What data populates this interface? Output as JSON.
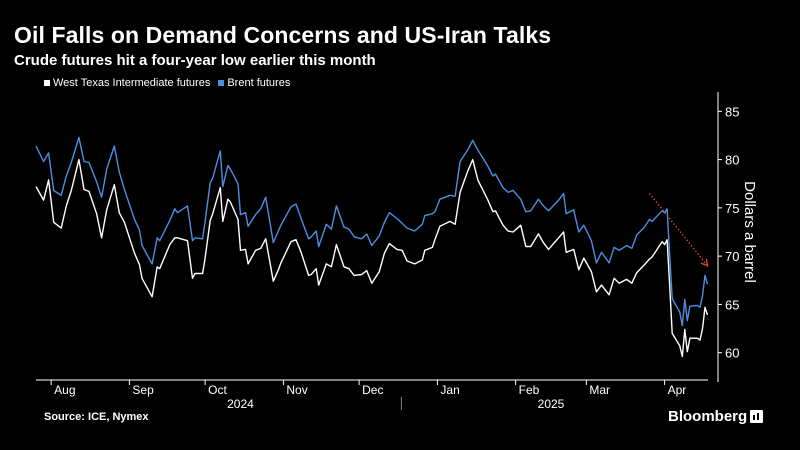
{
  "header": {
    "title": "Oil Falls on Demand Concerns and US-Iran Talks",
    "subtitle": "Crude futures hit a four-year low earlier this month"
  },
  "footer": {
    "source": "Source: ICE, Nymex",
    "brand": "Bloomberg"
  },
  "colors": {
    "background": "#000000",
    "wti": "#ffffff",
    "brent": "#4a90e2",
    "arrow": "#e04a3a"
  },
  "chart_data": {
    "type": "line",
    "title": "Oil Falls on Demand Concerns and US-Iran Talks",
    "subtitle": "Crude futures hit a four-year low earlier this month",
    "ylabel": "Dollars a barrel",
    "ylim": [
      58,
      87
    ],
    "yticks": [
      60,
      65,
      70,
      75,
      80,
      85
    ],
    "y_axis_position": "right",
    "grid": false,
    "legend_position": "top-left",
    "xlim": [
      "2024-07-26",
      "2025-04-17"
    ],
    "month_ticks": [
      {
        "label": "Aug",
        "date": "2024-08-01"
      },
      {
        "label": "Sep",
        "date": "2024-09-01"
      },
      {
        "label": "Oct",
        "date": "2024-10-01"
      },
      {
        "label": "Nov",
        "date": "2024-11-01"
      },
      {
        "label": "Dec",
        "date": "2024-12-01"
      },
      {
        "label": "Jan",
        "date": "2025-01-01"
      },
      {
        "label": "Feb",
        "date": "2025-02-01"
      },
      {
        "label": "Mar",
        "date": "2025-03-01"
      },
      {
        "label": "Apr",
        "date": "2025-04-01"
      }
    ],
    "year_labels": [
      {
        "label": "2024",
        "date": "2024-10-15"
      },
      {
        "label": "2025",
        "date": "2025-02-15"
      }
    ],
    "year_divider_date": "2025-01-01",
    "series": [
      {
        "name": "West Texas Intermediate futures",
        "color": "#ffffff",
        "points": [
          [
            "2024-07-26",
            77.2
          ],
          [
            "2024-07-29",
            75.8
          ],
          [
            "2024-07-31",
            77.9
          ],
          [
            "2024-08-02",
            73.5
          ],
          [
            "2024-08-05",
            72.9
          ],
          [
            "2024-08-07",
            75.2
          ],
          [
            "2024-08-09",
            76.8
          ],
          [
            "2024-08-12",
            80.0
          ],
          [
            "2024-08-14",
            76.9
          ],
          [
            "2024-08-16",
            76.7
          ],
          [
            "2024-08-19",
            74.4
          ],
          [
            "2024-08-21",
            71.9
          ],
          [
            "2024-08-23",
            74.8
          ],
          [
            "2024-08-26",
            77.4
          ],
          [
            "2024-08-28",
            74.5
          ],
          [
            "2024-08-30",
            73.5
          ],
          [
            "2024-09-03",
            70.3
          ],
          [
            "2024-09-05",
            69.1
          ],
          [
            "2024-09-06",
            67.7
          ],
          [
            "2024-09-10",
            65.8
          ],
          [
            "2024-09-12",
            68.9
          ],
          [
            "2024-09-13",
            68.7
          ],
          [
            "2024-09-17",
            71.2
          ],
          [
            "2024-09-19",
            71.9
          ],
          [
            "2024-09-20",
            71.9
          ],
          [
            "2024-09-24",
            71.6
          ],
          [
            "2024-09-26",
            67.7
          ],
          [
            "2024-09-27",
            68.2
          ],
          [
            "2024-09-30",
            68.2
          ],
          [
            "2024-10-01",
            69.8
          ],
          [
            "2024-10-03",
            73.7
          ],
          [
            "2024-10-04",
            74.4
          ],
          [
            "2024-10-07",
            77.1
          ],
          [
            "2024-10-08",
            73.6
          ],
          [
            "2024-10-10",
            75.9
          ],
          [
            "2024-10-11",
            75.6
          ],
          [
            "2024-10-14",
            73.8
          ],
          [
            "2024-10-15",
            70.6
          ],
          [
            "2024-10-17",
            70.7
          ],
          [
            "2024-10-18",
            69.2
          ],
          [
            "2024-10-21",
            70.6
          ],
          [
            "2024-10-23",
            70.8
          ],
          [
            "2024-10-25",
            71.8
          ],
          [
            "2024-10-28",
            67.4
          ],
          [
            "2024-10-30",
            68.6
          ],
          [
            "2024-10-31",
            69.3
          ],
          [
            "2024-11-04",
            71.5
          ],
          [
            "2024-11-06",
            71.7
          ],
          [
            "2024-11-08",
            70.4
          ],
          [
            "2024-11-11",
            68.0
          ],
          [
            "2024-11-12",
            68.1
          ],
          [
            "2024-11-14",
            68.7
          ],
          [
            "2024-11-15",
            67.0
          ],
          [
            "2024-11-18",
            69.2
          ],
          [
            "2024-11-20",
            68.9
          ],
          [
            "2024-11-22",
            71.2
          ],
          [
            "2024-11-25",
            68.9
          ],
          [
            "2024-11-27",
            68.7
          ],
          [
            "2024-11-29",
            68.0
          ],
          [
            "2024-12-02",
            68.1
          ],
          [
            "2024-12-04",
            68.5
          ],
          [
            "2024-12-06",
            67.2
          ],
          [
            "2024-12-09",
            68.4
          ],
          [
            "2024-12-11",
            70.3
          ],
          [
            "2024-12-13",
            71.3
          ],
          [
            "2024-12-16",
            70.7
          ],
          [
            "2024-12-18",
            70.6
          ],
          [
            "2024-12-20",
            69.5
          ],
          [
            "2024-12-23",
            69.2
          ],
          [
            "2024-12-26",
            69.6
          ],
          [
            "2024-12-27",
            70.6
          ],
          [
            "2024-12-30",
            70.9
          ],
          [
            "2024-12-31",
            71.7
          ],
          [
            "2025-01-02",
            73.1
          ],
          [
            "2025-01-06",
            73.6
          ],
          [
            "2025-01-08",
            73.3
          ],
          [
            "2025-01-10",
            76.6
          ],
          [
            "2025-01-13",
            78.8
          ],
          [
            "2025-01-15",
            80.0
          ],
          [
            "2025-01-17",
            77.9
          ],
          [
            "2025-01-21",
            75.8
          ],
          [
            "2025-01-23",
            74.6
          ],
          [
            "2025-01-24",
            74.7
          ],
          [
            "2025-01-27",
            73.2
          ],
          [
            "2025-01-29",
            72.6
          ],
          [
            "2025-01-31",
            72.5
          ],
          [
            "2025-02-03",
            73.2
          ],
          [
            "2025-02-05",
            71.0
          ],
          [
            "2025-02-07",
            71.0
          ],
          [
            "2025-02-10",
            72.3
          ],
          [
            "2025-02-12",
            71.4
          ],
          [
            "2025-02-14",
            70.7
          ],
          [
            "2025-02-18",
            71.9
          ],
          [
            "2025-02-20",
            72.5
          ],
          [
            "2025-02-21",
            70.4
          ],
          [
            "2025-02-24",
            70.7
          ],
          [
            "2025-02-26",
            68.6
          ],
          [
            "2025-02-28",
            69.8
          ],
          [
            "2025-03-03",
            68.4
          ],
          [
            "2025-03-05",
            66.3
          ],
          [
            "2025-03-07",
            67.0
          ],
          [
            "2025-03-10",
            66.0
          ],
          [
            "2025-03-12",
            67.7
          ],
          [
            "2025-03-14",
            67.2
          ],
          [
            "2025-03-17",
            67.6
          ],
          [
            "2025-03-19",
            67.2
          ],
          [
            "2025-03-21",
            68.3
          ],
          [
            "2025-03-24",
            69.1
          ],
          [
            "2025-03-26",
            69.7
          ],
          [
            "2025-03-27",
            69.9
          ],
          [
            "2025-03-31",
            71.5
          ],
          [
            "2025-04-01",
            71.2
          ],
          [
            "2025-04-02",
            71.7
          ],
          [
            "2025-04-03",
            66.9
          ],
          [
            "2025-04-04",
            62.0
          ],
          [
            "2025-04-07",
            60.7
          ],
          [
            "2025-04-08",
            59.6
          ],
          [
            "2025-04-09",
            62.4
          ],
          [
            "2025-04-10",
            60.1
          ],
          [
            "2025-04-11",
            61.5
          ],
          [
            "2025-04-14",
            61.5
          ],
          [
            "2025-04-15",
            61.3
          ],
          [
            "2025-04-16",
            62.5
          ],
          [
            "2025-04-17",
            64.7
          ],
          [
            "2025-04-18",
            63.9
          ]
        ]
      },
      {
        "name": "Brent futures",
        "color": "#4a90e2",
        "points": [
          [
            "2024-07-26",
            81.4
          ],
          [
            "2024-07-29",
            79.8
          ],
          [
            "2024-07-31",
            80.7
          ],
          [
            "2024-08-02",
            76.8
          ],
          [
            "2024-08-05",
            76.3
          ],
          [
            "2024-08-07",
            78.3
          ],
          [
            "2024-08-09",
            79.7
          ],
          [
            "2024-08-12",
            82.3
          ],
          [
            "2024-08-14",
            79.8
          ],
          [
            "2024-08-16",
            79.7
          ],
          [
            "2024-08-19",
            77.7
          ],
          [
            "2024-08-21",
            76.1
          ],
          [
            "2024-08-23",
            79.0
          ],
          [
            "2024-08-26",
            81.4
          ],
          [
            "2024-08-28",
            78.7
          ],
          [
            "2024-08-30",
            76.9
          ],
          [
            "2024-09-03",
            73.8
          ],
          [
            "2024-09-05",
            72.7
          ],
          [
            "2024-09-06",
            71.1
          ],
          [
            "2024-09-10",
            69.2
          ],
          [
            "2024-09-12",
            71.9
          ],
          [
            "2024-09-13",
            71.6
          ],
          [
            "2024-09-17",
            73.7
          ],
          [
            "2024-09-19",
            74.9
          ],
          [
            "2024-09-20",
            74.5
          ],
          [
            "2024-09-24",
            75.2
          ],
          [
            "2024-09-26",
            71.6
          ],
          [
            "2024-09-27",
            71.9
          ],
          [
            "2024-09-30",
            71.8
          ],
          [
            "2024-10-01",
            73.6
          ],
          [
            "2024-10-03",
            77.6
          ],
          [
            "2024-10-04",
            78.1
          ],
          [
            "2024-10-07",
            80.9
          ],
          [
            "2024-10-08",
            77.2
          ],
          [
            "2024-10-10",
            79.4
          ],
          [
            "2024-10-11",
            79.0
          ],
          [
            "2024-10-14",
            77.5
          ],
          [
            "2024-10-15",
            74.3
          ],
          [
            "2024-10-17",
            74.5
          ],
          [
            "2024-10-18",
            73.1
          ],
          [
            "2024-10-21",
            74.3
          ],
          [
            "2024-10-23",
            74.9
          ],
          [
            "2024-10-25",
            76.1
          ],
          [
            "2024-10-28",
            71.4
          ],
          [
            "2024-10-30",
            72.6
          ],
          [
            "2024-10-31",
            73.2
          ],
          [
            "2024-11-04",
            75.1
          ],
          [
            "2024-11-06",
            75.4
          ],
          [
            "2024-11-08",
            73.9
          ],
          [
            "2024-11-11",
            71.8
          ],
          [
            "2024-11-12",
            72.0
          ],
          [
            "2024-11-14",
            72.6
          ],
          [
            "2024-11-15",
            71.0
          ],
          [
            "2024-11-18",
            73.3
          ],
          [
            "2024-11-20",
            72.8
          ],
          [
            "2024-11-22",
            75.2
          ],
          [
            "2024-11-25",
            73.0
          ],
          [
            "2024-11-27",
            72.8
          ],
          [
            "2024-11-29",
            72.0
          ],
          [
            "2024-12-02",
            71.8
          ],
          [
            "2024-12-04",
            72.3
          ],
          [
            "2024-12-06",
            71.1
          ],
          [
            "2024-12-09",
            72.1
          ],
          [
            "2024-12-11",
            73.5
          ],
          [
            "2024-12-13",
            74.5
          ],
          [
            "2024-12-16",
            73.9
          ],
          [
            "2024-12-18",
            73.4
          ],
          [
            "2024-12-20",
            72.9
          ],
          [
            "2024-12-23",
            72.6
          ],
          [
            "2024-12-26",
            73.3
          ],
          [
            "2024-12-27",
            74.2
          ],
          [
            "2024-12-30",
            74.4
          ],
          [
            "2024-12-31",
            74.6
          ],
          [
            "2025-01-02",
            75.9
          ],
          [
            "2025-01-06",
            76.3
          ],
          [
            "2025-01-08",
            76.2
          ],
          [
            "2025-01-10",
            79.8
          ],
          [
            "2025-01-13",
            81.0
          ],
          [
            "2025-01-15",
            82.0
          ],
          [
            "2025-01-17",
            81.0
          ],
          [
            "2025-01-21",
            79.3
          ],
          [
            "2025-01-23",
            78.3
          ],
          [
            "2025-01-24",
            78.5
          ],
          [
            "2025-01-27",
            77.1
          ],
          [
            "2025-01-29",
            76.6
          ],
          [
            "2025-01-31",
            76.8
          ],
          [
            "2025-02-03",
            75.9
          ],
          [
            "2025-02-05",
            74.6
          ],
          [
            "2025-02-07",
            74.7
          ],
          [
            "2025-02-10",
            75.9
          ],
          [
            "2025-02-12",
            75.2
          ],
          [
            "2025-02-14",
            74.7
          ],
          [
            "2025-02-18",
            75.8
          ],
          [
            "2025-02-20",
            76.5
          ],
          [
            "2025-02-21",
            74.4
          ],
          [
            "2025-02-24",
            74.8
          ],
          [
            "2025-02-26",
            72.5
          ],
          [
            "2025-02-28",
            73.2
          ],
          [
            "2025-03-03",
            71.6
          ],
          [
            "2025-03-05",
            69.3
          ],
          [
            "2025-03-07",
            70.4
          ],
          [
            "2025-03-10",
            69.3
          ],
          [
            "2025-03-12",
            70.9
          ],
          [
            "2025-03-14",
            70.6
          ],
          [
            "2025-03-17",
            71.1
          ],
          [
            "2025-03-19",
            70.8
          ],
          [
            "2025-03-21",
            72.2
          ],
          [
            "2025-03-24",
            73.0
          ],
          [
            "2025-03-26",
            73.8
          ],
          [
            "2025-03-27",
            73.6
          ],
          [
            "2025-03-31",
            74.7
          ],
          [
            "2025-04-01",
            74.5
          ],
          [
            "2025-04-02",
            74.9
          ],
          [
            "2025-04-03",
            70.1
          ],
          [
            "2025-04-04",
            65.6
          ],
          [
            "2025-04-07",
            64.2
          ],
          [
            "2025-04-08",
            62.8
          ],
          [
            "2025-04-09",
            65.5
          ],
          [
            "2025-04-10",
            63.3
          ],
          [
            "2025-04-11",
            64.8
          ],
          [
            "2025-04-14",
            64.9
          ],
          [
            "2025-04-15",
            64.7
          ],
          [
            "2025-04-16",
            65.9
          ],
          [
            "2025-04-17",
            68.0
          ],
          [
            "2025-04-18",
            67.1
          ]
        ]
      }
    ],
    "annotations": [
      {
        "type": "arrow",
        "style": "dotted",
        "color": "#e04a3a",
        "from": [
          "2025-03-26",
          76.5
        ],
        "to": [
          "2025-04-18",
          69.0
        ]
      }
    ]
  }
}
